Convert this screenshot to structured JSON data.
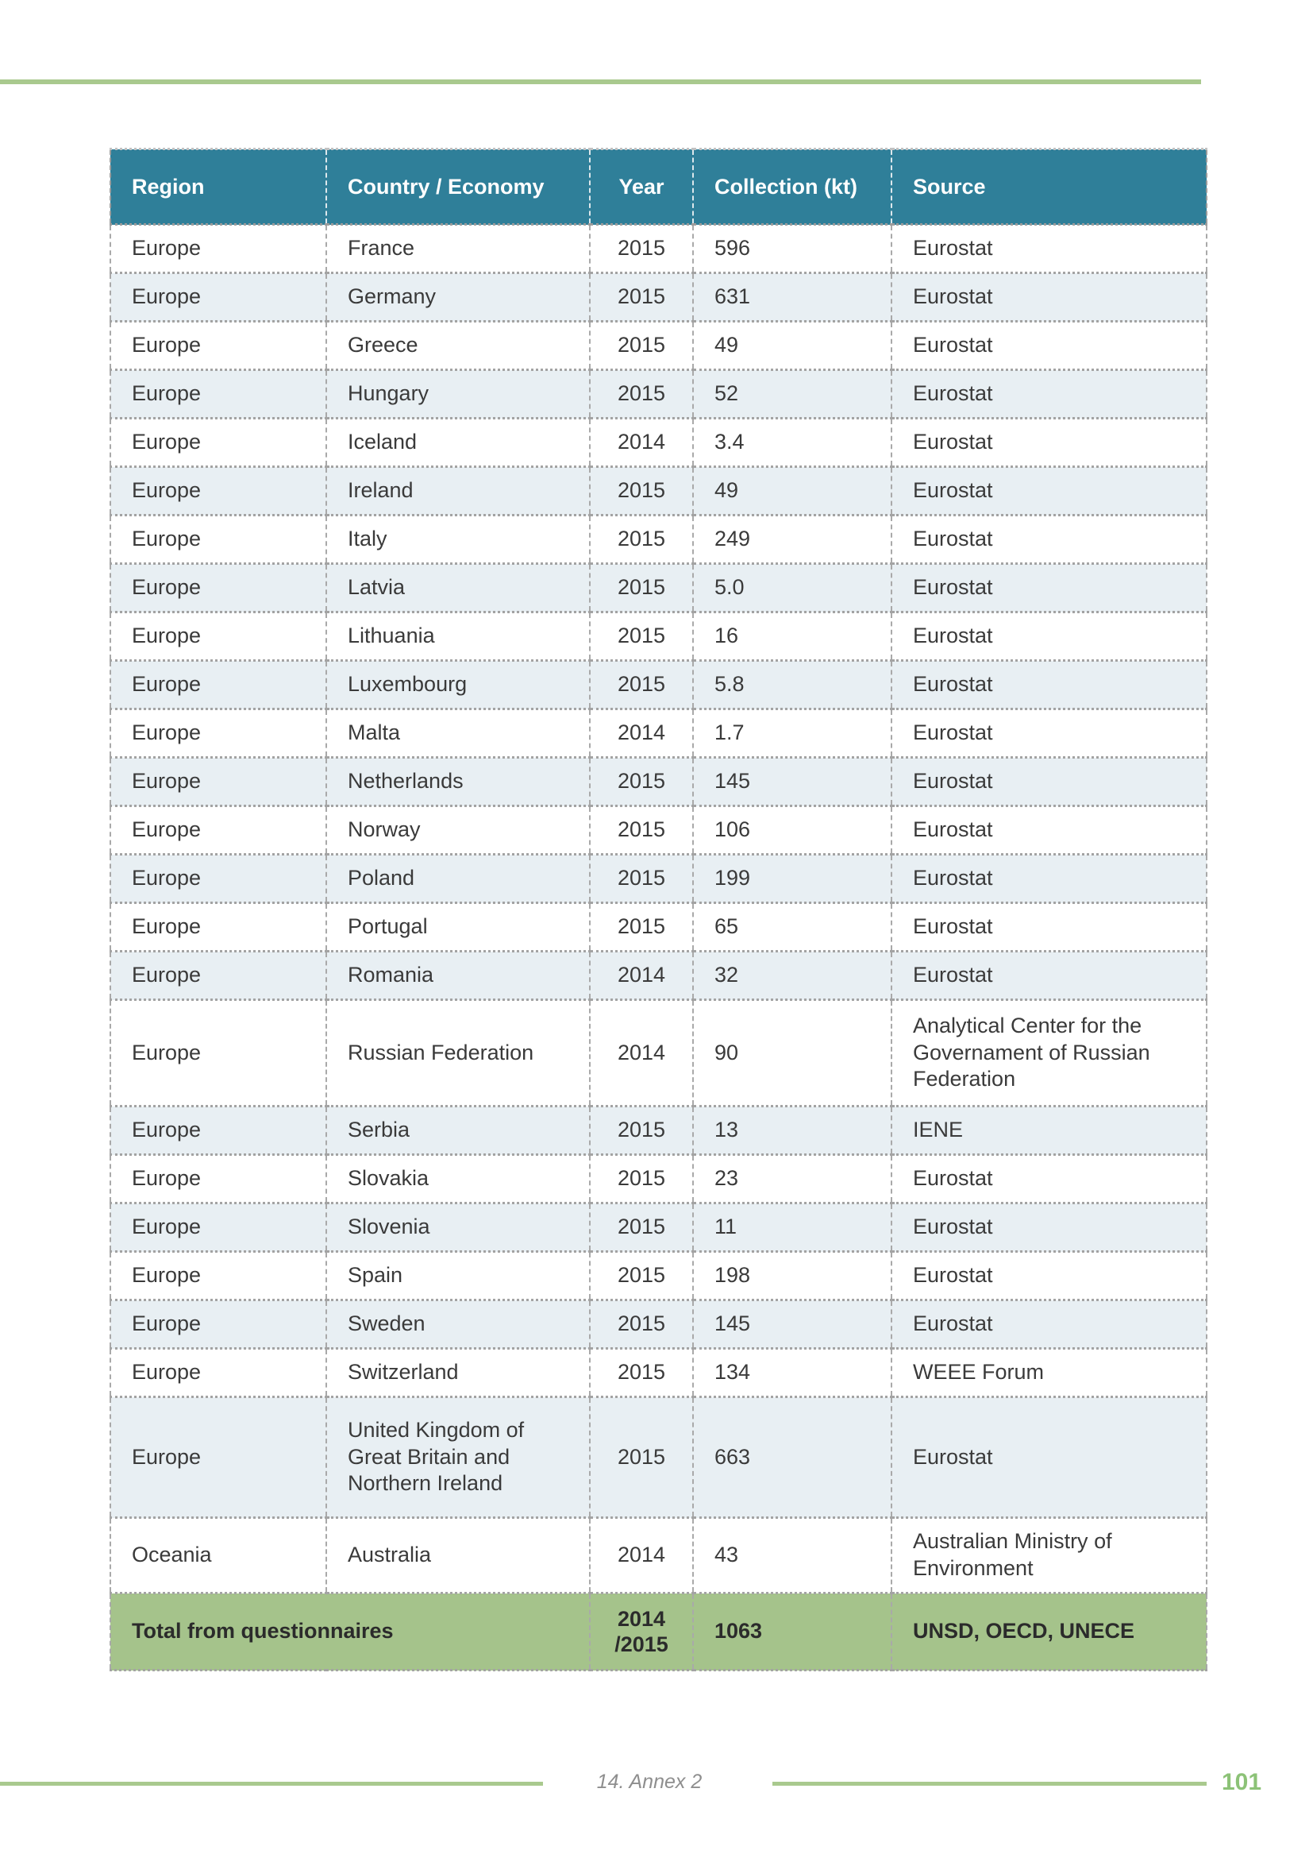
{
  "page": {
    "footer": {
      "annex_label": "14. Annex 2",
      "page_number": "101"
    }
  },
  "colors": {
    "header_bg": "#2f7f99",
    "header_text": "#ffffff",
    "zebra_row_bg": "#e8eff3",
    "total_row_bg": "#a5c38b",
    "rule_green": "#a9c98e",
    "page_number_green": "#8cc277",
    "body_text": "#3a3a3a",
    "border_dash_gray": "#a3a3a3"
  },
  "table": {
    "headers": [
      "Region",
      "Country / Economy",
      "Year",
      "Collection (kt)",
      "Source"
    ],
    "rows": [
      {
        "region": "Europe",
        "country": "France",
        "year": "2015",
        "collection": "596",
        "source": "Eurostat"
      },
      {
        "region": "Europe",
        "country": "Germany",
        "year": "2015",
        "collection": "631",
        "source": "Eurostat"
      },
      {
        "region": "Europe",
        "country": "Greece",
        "year": "2015",
        "collection": "49",
        "source": "Eurostat"
      },
      {
        "region": "Europe",
        "country": "Hungary",
        "year": "2015",
        "collection": "52",
        "source": "Eurostat"
      },
      {
        "region": "Europe",
        "country": "Iceland",
        "year": "2014",
        "collection": "3.4",
        "source": "Eurostat"
      },
      {
        "region": "Europe",
        "country": "Ireland",
        "year": "2015",
        "collection": "49",
        "source": "Eurostat"
      },
      {
        "region": "Europe",
        "country": "Italy",
        "year": "2015",
        "collection": "249",
        "source": "Eurostat"
      },
      {
        "region": "Europe",
        "country": "Latvia",
        "year": "2015",
        "collection": "5.0",
        "source": "Eurostat"
      },
      {
        "region": "Europe",
        "country": "Lithuania",
        "year": "2015",
        "collection": "16",
        "source": "Eurostat"
      },
      {
        "region": "Europe",
        "country": "Luxembourg",
        "year": "2015",
        "collection": "5.8",
        "source": "Eurostat"
      },
      {
        "region": "Europe",
        "country": "Malta",
        "year": "2014",
        "collection": "1.7",
        "source": "Eurostat"
      },
      {
        "region": "Europe",
        "country": "Netherlands",
        "year": "2015",
        "collection": "145",
        "source": "Eurostat"
      },
      {
        "region": "Europe",
        "country": "Norway",
        "year": "2015",
        "collection": "106",
        "source": "Eurostat"
      },
      {
        "region": "Europe",
        "country": "Poland",
        "year": "2015",
        "collection": "199",
        "source": "Eurostat"
      },
      {
        "region": "Europe",
        "country": "Portugal",
        "year": "2015",
        "collection": "65",
        "source": "Eurostat"
      },
      {
        "region": "Europe",
        "country": "Romania",
        "year": "2014",
        "collection": "32",
        "source": "Eurostat"
      },
      {
        "region": "Europe",
        "country": "Russian Federation",
        "year": "2014",
        "collection": "90",
        "source": "Analytical Center for the Governament of Russian Federation"
      },
      {
        "region": "Europe",
        "country": "Serbia",
        "year": "2015",
        "collection": "13",
        "source": "IENE"
      },
      {
        "region": "Europe",
        "country": "Slovakia",
        "year": "2015",
        "collection": "23",
        "source": "Eurostat"
      },
      {
        "region": "Europe",
        "country": "Slovenia",
        "year": "2015",
        "collection": "11",
        "source": "Eurostat"
      },
      {
        "region": "Europe",
        "country": "Spain",
        "year": "2015",
        "collection": "198",
        "source": "Eurostat"
      },
      {
        "region": "Europe",
        "country": "Sweden",
        "year": "2015",
        "collection": "145",
        "source": "Eurostat"
      },
      {
        "region": "Europe",
        "country": "Switzerland",
        "year": "2015",
        "collection": "134",
        "source": "WEEE Forum"
      },
      {
        "region": "Europe",
        "country": "United Kingdom of Great Britain and Northern Ireland",
        "year": "2015",
        "collection": "663",
        "source": "Eurostat"
      },
      {
        "region": "Oceania",
        "country": "Australia",
        "year": "2014",
        "collection": "43",
        "source": "Australian Ministry of Environment"
      }
    ],
    "total_row": {
      "label": "Total from questionnaires",
      "year": "2014\n/2015",
      "collection": "1063",
      "source": "UNSD, OECD, UNECE"
    }
  }
}
